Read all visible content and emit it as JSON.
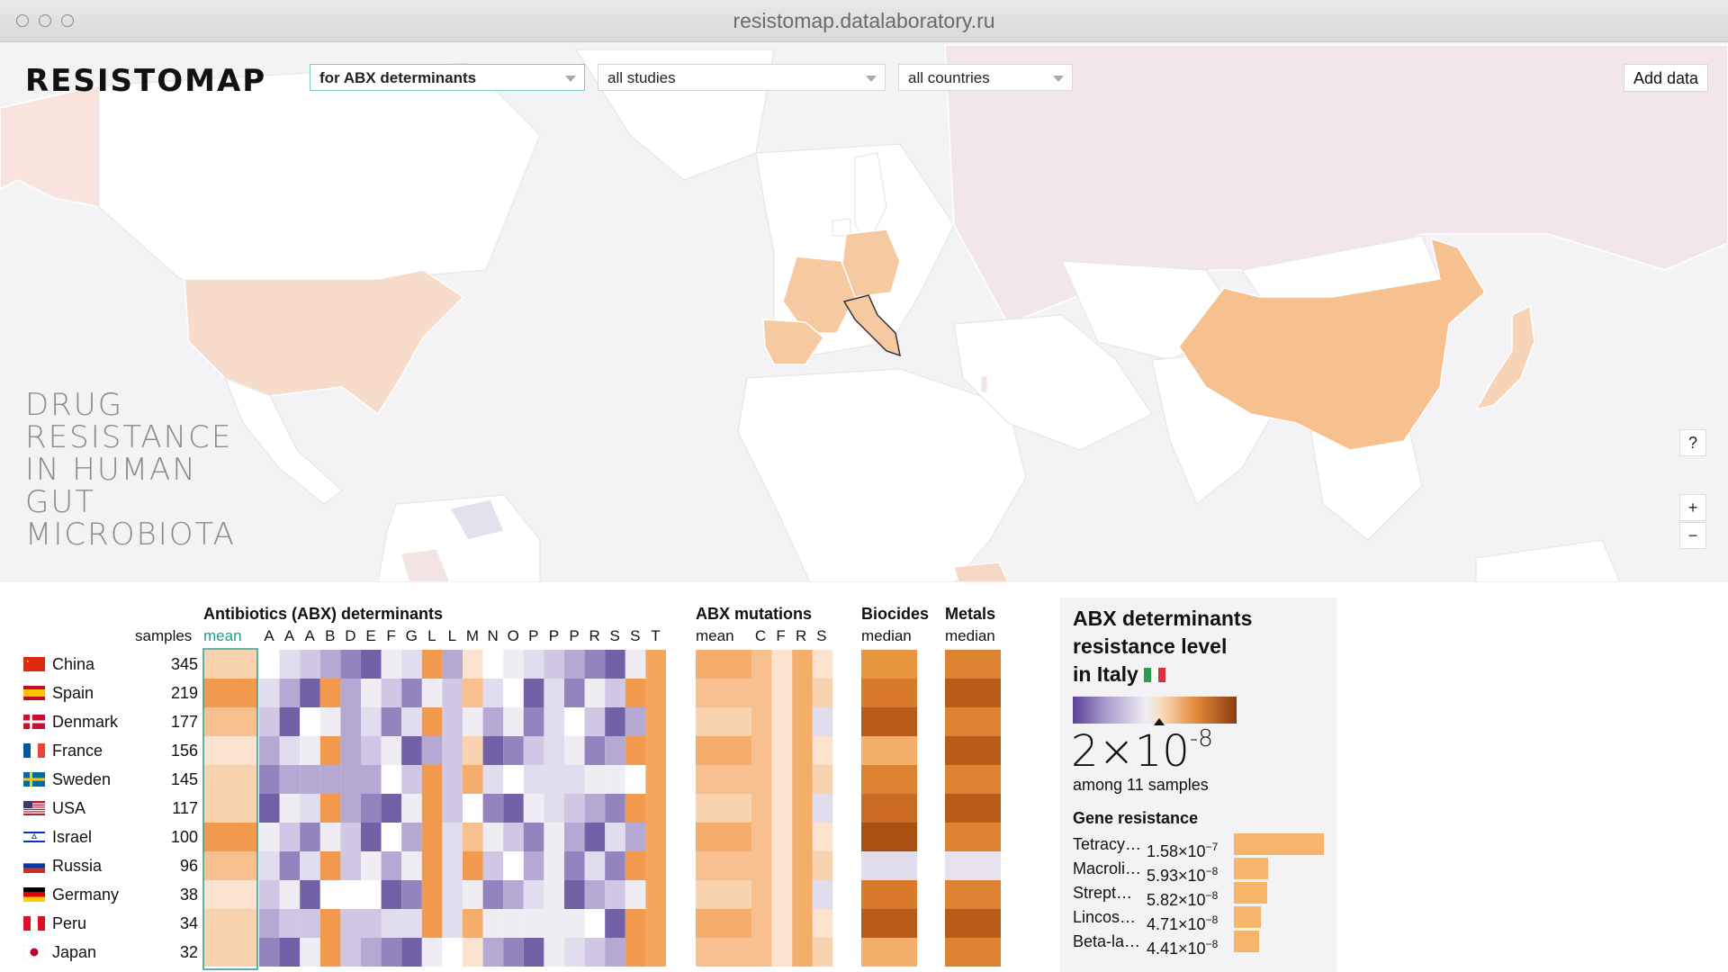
{
  "window": {
    "url": "resistomap.datalaboratory.ru"
  },
  "header": {
    "logo": "RESISTOMAP",
    "filters": [
      {
        "value": "for ABX determinants"
      },
      {
        "value": "all studies"
      },
      {
        "value": "all countries"
      }
    ],
    "add_data": "Add data"
  },
  "tagline": [
    "DRUG",
    "RESISTANCE",
    "IN HUMAN",
    "GUT",
    "MICROBIOTA"
  ],
  "map_controls": {
    "help": "?",
    "zoom_in": "+",
    "zoom_out": "−"
  },
  "colors": {
    "orange_light": "#f7c9a0",
    "orange": "#f6b27a",
    "orange_dark": "#d9742a",
    "purple_light": "#e6e0ee",
    "purple": "#a99ccd",
    "purple_dark": "#6f5aa3",
    "teal": "#1a9c8f"
  },
  "heatmap": {
    "samples_label": "samples",
    "abx_title": "Antibiotics (ABX) determinants",
    "abx_sub": "mean",
    "abx_columns": [
      "A",
      "A",
      "A",
      "B",
      "D",
      "E",
      "F",
      "G",
      "L",
      "L",
      "M",
      "N",
      "O",
      "P",
      "P",
      "P",
      "R",
      "S",
      "S",
      "T"
    ],
    "mutations_title": "ABX mutations",
    "mutations_sub": "mean",
    "mutation_columns": [
      "C",
      "F",
      "R",
      "S"
    ],
    "biocides_title": "Biocides",
    "biocides_sub": "median",
    "metals_title": "Metals",
    "metals_sub": "median",
    "rows": [
      {
        "country": "China",
        "samples": "345",
        "flag": "cn"
      },
      {
        "country": "Spain",
        "samples": "219",
        "flag": "es"
      },
      {
        "country": "Denmark",
        "samples": "177",
        "flag": "dk"
      },
      {
        "country": "France",
        "samples": "156",
        "flag": "fr"
      },
      {
        "country": "Sweden",
        "samples": "145",
        "flag": "se"
      },
      {
        "country": "USA",
        "samples": "117",
        "flag": "us"
      },
      {
        "country": "Israel",
        "samples": "100",
        "flag": "il"
      },
      {
        "country": "Russia",
        "samples": "96",
        "flag": "ru"
      },
      {
        "country": "Germany",
        "samples": "38",
        "flag": "de"
      },
      {
        "country": "Peru",
        "samples": "34",
        "flag": "pe"
      },
      {
        "country": "Japan",
        "samples": "32",
        "flag": "jp"
      }
    ]
  },
  "info_panel": {
    "title_lines": [
      "ABX determinants",
      "resistance level",
      "in Italy"
    ],
    "value_mantissa": "2×10",
    "value_exponent": "-8",
    "samples_text": "among 11 samples",
    "gene_title": "Gene resistance",
    "genes": [
      {
        "name": "Tetracy…",
        "mantissa": "1.58×10",
        "exp": "−7",
        "level": 1.0
      },
      {
        "name": "Macroli…",
        "mantissa": "5.93×10",
        "exp": "−8",
        "level": 0.375
      },
      {
        "name": "Strept…",
        "mantissa": "5.82×10",
        "exp": "−8",
        "level": 0.368
      },
      {
        "name": "Lincos…",
        "mantissa": "4.71×10",
        "exp": "−8",
        "level": 0.298
      },
      {
        "name": "Beta-la…",
        "mantissa": "4.41×10",
        "exp": "−8",
        "level": 0.279
      }
    ]
  }
}
